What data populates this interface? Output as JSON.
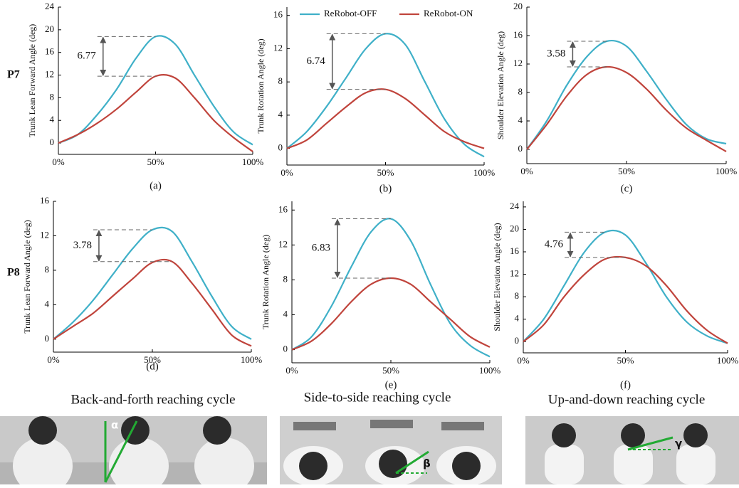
{
  "chart_data": [
    {
      "type": "line",
      "caption": "(a)",
      "ylabel": "Trunk Lean Forward Angle (deg)",
      "x": [
        0,
        10,
        20,
        30,
        40,
        50,
        60,
        70,
        80,
        90,
        100
      ],
      "xlim": [
        0,
        100
      ],
      "xticks": [
        {
          "value": 0,
          "label": "0%"
        },
        {
          "value": 50,
          "label": "50%"
        },
        {
          "value": 100,
          "label": "100%"
        }
      ],
      "ylim": [
        -2,
        24
      ],
      "yticks": [
        0,
        4,
        8,
        12,
        16,
        20,
        24
      ],
      "series": [
        {
          "color": "#3fb0c8",
          "values": [
            0,
            1.5,
            5,
            9.5,
            15,
            18.8,
            17.5,
            12,
            6.5,
            2,
            -0.3
          ]
        },
        {
          "color": "#c0443c",
          "values": [
            0,
            1.5,
            3.5,
            6,
            9,
            11.8,
            11.5,
            8,
            4,
            1,
            -1.5
          ]
        }
      ],
      "annotation": 6.77
    },
    {
      "type": "line",
      "caption": "(b)",
      "ylabel": "Trunk Rotation Angle (deg)",
      "x": [
        0,
        10,
        20,
        30,
        40,
        50,
        60,
        70,
        80,
        90,
        100
      ],
      "xlim": [
        0,
        100
      ],
      "xticks": [
        {
          "value": 0,
          "label": "0%"
        },
        {
          "value": 50,
          "label": "50%"
        },
        {
          "value": 100,
          "label": "100%"
        }
      ],
      "ylim": [
        -2,
        17
      ],
      "yticks": [
        0,
        4,
        8,
        12,
        16
      ],
      "series": [
        {
          "name": "ReRobot-OFF",
          "color": "#3fb0c8",
          "values": [
            0,
            2,
            5,
            8.5,
            12,
            13.8,
            12.5,
            8,
            3.5,
            0.5,
            -1
          ]
        },
        {
          "name": "ReRobot-ON",
          "color": "#c0443c",
          "values": [
            0,
            1,
            3,
            5,
            6.7,
            7.1,
            6,
            4,
            2,
            0.8,
            0
          ]
        }
      ],
      "annotation": 6.74,
      "legend": "top"
    },
    {
      "type": "line",
      "caption": "(c)",
      "ylabel": "Shoulder Elevation Angle (deg)",
      "x": [
        0,
        10,
        20,
        30,
        40,
        50,
        60,
        70,
        80,
        90,
        100
      ],
      "xlim": [
        0,
        100
      ],
      "xticks": [
        {
          "value": 0,
          "label": "0%"
        },
        {
          "value": 50,
          "label": "50%"
        },
        {
          "value": 100,
          "label": "100%"
        }
      ],
      "ylim": [
        -2,
        20
      ],
      "yticks": [
        0,
        4,
        8,
        12,
        16,
        20
      ],
      "series": [
        {
          "color": "#3fb0c8",
          "values": [
            0,
            4,
            9,
            13,
            15.2,
            14.5,
            11,
            7,
            3.5,
            1.5,
            0.8
          ]
        },
        {
          "color": "#c0443c",
          "values": [
            0,
            3.5,
            7.5,
            10.5,
            11.6,
            10.8,
            8.5,
            5.5,
            3,
            1.3,
            -0.3
          ]
        }
      ],
      "annotation": 3.58
    },
    {
      "type": "line",
      "caption": "(d)",
      "ylabel": "Trunk Lean Forward Angle (deg)",
      "x": [
        0,
        10,
        20,
        30,
        40,
        50,
        60,
        70,
        80,
        90,
        100
      ],
      "xlim": [
        0,
        100
      ],
      "xticks": [
        {
          "value": 0,
          "label": "0%"
        },
        {
          "value": 50,
          "label": "50%"
        },
        {
          "value": 100,
          "label": "100%"
        }
      ],
      "ylim": [
        -1.5,
        16
      ],
      "yticks": [
        0,
        4,
        8,
        12,
        16
      ],
      "series": [
        {
          "color": "#3fb0c8",
          "values": [
            0,
            2,
            4.5,
            7.5,
            10.5,
            12.7,
            12.5,
            9,
            5,
            1.5,
            0
          ]
        },
        {
          "color": "#c0443c",
          "values": [
            0,
            1.5,
            3,
            5,
            7,
            8.9,
            9,
            6.5,
            3.5,
            0.5,
            -0.8
          ]
        }
      ],
      "annotation": 3.78
    },
    {
      "type": "line",
      "caption": "(e)",
      "ylabel": "Trunk Rotation Angle (deg)",
      "x": [
        0,
        10,
        20,
        30,
        40,
        50,
        60,
        70,
        80,
        90,
        100
      ],
      "xlim": [
        0,
        100
      ],
      "xticks": [
        {
          "value": 0,
          "label": "0%"
        },
        {
          "value": 50,
          "label": "50%"
        },
        {
          "value": 100,
          "label": "100%"
        }
      ],
      "ylim": [
        -1.5,
        17
      ],
      "yticks": [
        0,
        4,
        8,
        12,
        16
      ],
      "series": [
        {
          "color": "#3fb0c8",
          "values": [
            0,
            1.5,
            5,
            9.5,
            13.5,
            15,
            12.5,
            7.5,
            3,
            0.5,
            -0.8
          ]
        },
        {
          "color": "#c0443c",
          "values": [
            0,
            1,
            3,
            5.5,
            7.5,
            8.2,
            7.5,
            5.5,
            3.5,
            1.5,
            0.3
          ]
        }
      ],
      "annotation": 6.83
    },
    {
      "type": "line",
      "caption": "(f)",
      "ylabel": "Shoulder Elevation Angle (deg)",
      "x": [
        0,
        10,
        20,
        30,
        40,
        50,
        60,
        70,
        80,
        90,
        100
      ],
      "xlim": [
        0,
        100
      ],
      "xticks": [
        {
          "value": 0,
          "label": "0%"
        },
        {
          "value": 50,
          "label": "50%"
        },
        {
          "value": 100,
          "label": "100%"
        }
      ],
      "ylim": [
        -2,
        25
      ],
      "yticks": [
        0,
        4,
        8,
        12,
        16,
        20,
        24
      ],
      "series": [
        {
          "color": "#3fb0c8",
          "values": [
            0,
            4,
            10,
            16,
            19.5,
            19,
            14,
            8,
            3.5,
            1,
            -0.3
          ]
        },
        {
          "color": "#c0443c",
          "values": [
            0,
            3,
            8,
            12,
            14.7,
            15,
            13.5,
            10,
            5.5,
            2,
            -0.3
          ]
        }
      ],
      "annotation": 4.76
    }
  ],
  "row_labels": [
    "P7",
    "P8"
  ],
  "column_captions": [
    "Back-and-forth reaching cycle",
    "Side-to-side reaching cycle",
    "Up-and-down reaching cycle"
  ],
  "illustration_symbols": [
    "α",
    "β",
    "γ"
  ]
}
